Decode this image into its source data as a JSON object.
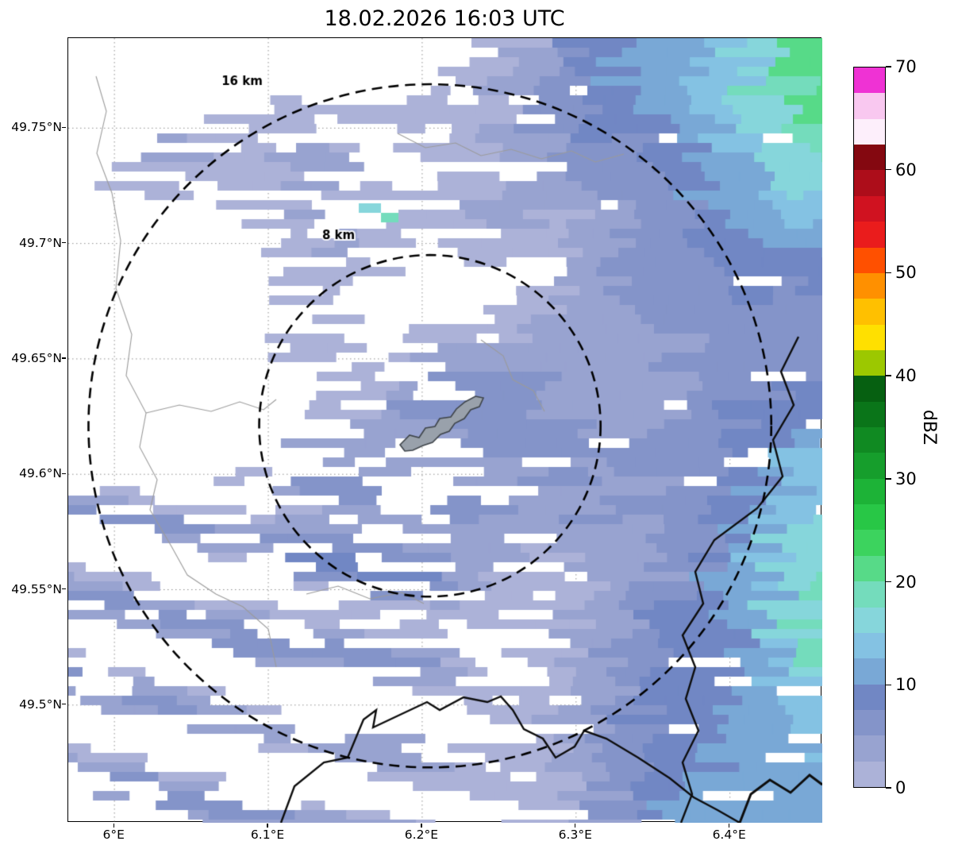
{
  "chart_data": {
    "type": "heatmap",
    "title": "18.02.2026 16:03 UTC",
    "x_axis": {
      "range": [
        5.97,
        6.46
      ],
      "ticks": [
        {
          "value": 6.0,
          "label": "6°E"
        },
        {
          "value": 6.1,
          "label": "6.1°E"
        },
        {
          "value": 6.2,
          "label": "6.2°E"
        },
        {
          "value": 6.3,
          "label": "6.3°E"
        },
        {
          "value": 6.4,
          "label": "6.4°E"
        }
      ]
    },
    "y_axis": {
      "range": [
        49.449,
        49.789
      ],
      "ticks": [
        {
          "value": 49.75,
          "label": "49.75°N"
        },
        {
          "value": 49.7,
          "label": "49.7°N"
        },
        {
          "value": 49.65,
          "label": "49.65°N"
        },
        {
          "value": 49.6,
          "label": "49.6°N"
        },
        {
          "value": 49.55,
          "label": "49.55°N"
        },
        {
          "value": 49.5,
          "label": "49.5°N"
        }
      ]
    },
    "grid": true,
    "range_rings": {
      "center": {
        "lon": 6.205,
        "lat": 49.621
      },
      "rings": [
        {
          "radius_km": 16,
          "label": "16 km"
        },
        {
          "radius_km": 8,
          "label": "8 km"
        }
      ]
    },
    "colorbar": {
      "label": "dBZ",
      "min": 0,
      "max": 70,
      "segment_step": 2.5,
      "ticks": [
        0,
        10,
        20,
        30,
        40,
        50,
        60,
        70
      ],
      "colors_bottom_to_top": [
        "#acb2d8",
        "#98a3d0",
        "#8494c9",
        "#7187c4",
        "#79a8d6",
        "#84c2e3",
        "#86d6db",
        "#74dcbc",
        "#57da88",
        "#3cd35e",
        "#28c746",
        "#1db337",
        "#169e2c",
        "#108a22",
        "#0a7519",
        "#066011",
        "#9cc800",
        "#ffe000",
        "#ffc000",
        "#ff9000",
        "#ff5000",
        "#ea1c1c",
        "#d01220",
        "#ad0d1a",
        "#840810",
        "#fdeffb",
        "#f9c8f0",
        "#ef32d4"
      ]
    }
  }
}
